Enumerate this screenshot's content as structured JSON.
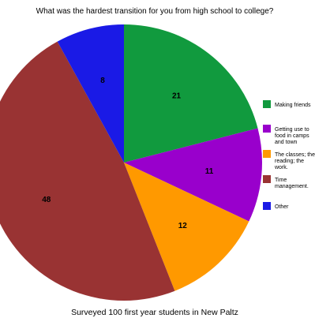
{
  "chart_data": {
    "type": "pie",
    "title": "What was the hardest transition for you from high school to college?",
    "subtitle": "Surveyed 100 first year students in New Paltz",
    "slices": [
      {
        "label": "Making friends",
        "legend_lines": [
          "Making friends"
        ],
        "value": 21,
        "color": "#119A3E"
      },
      {
        "label": "Getting use to food in camps and town",
        "legend_lines": [
          "Getting use to",
          "food in camps",
          "and town"
        ],
        "value": 11,
        "color": "#9900CC"
      },
      {
        "label": "The classes; the reading; the work.",
        "legend_lines": [
          "The classes; the",
          "reading; the",
          "work."
        ],
        "value": 12,
        "color": "#FF9900"
      },
      {
        "label": "Time management.",
        "legend_lines": [
          "Time",
          "management."
        ],
        "value": 48,
        "color": "#993333"
      },
      {
        "label": "Other",
        "legend_lines": [
          "Other"
        ],
        "value": 8,
        "color": "#1A1AE6"
      }
    ],
    "legend_position": "right"
  }
}
